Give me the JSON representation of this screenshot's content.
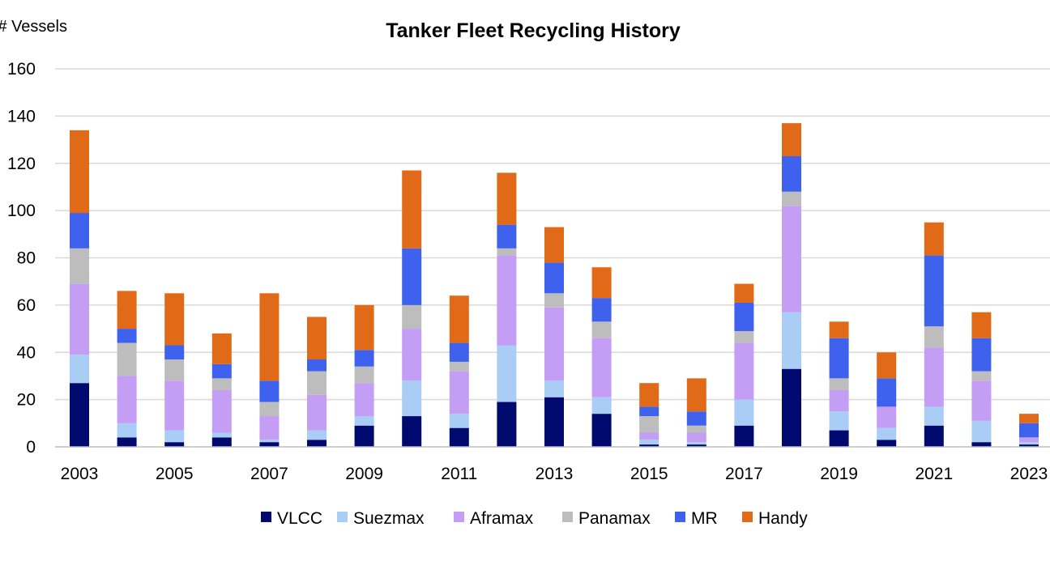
{
  "chart_data": {
    "type": "bar",
    "stacked": true,
    "title": "Tanker Fleet Recycling History",
    "ylabel": "# Vessels",
    "xlabel": "",
    "ylim": [
      0,
      160
    ],
    "yticks": [
      0,
      20,
      40,
      60,
      80,
      100,
      120,
      140,
      160
    ],
    "grid": true,
    "legend_position": "bottom",
    "categories": [
      2003,
      2004,
      2005,
      2006,
      2007,
      2008,
      2009,
      2010,
      2011,
      2012,
      2013,
      2014,
      2015,
      2016,
      2017,
      2018,
      2019,
      2020,
      2021,
      2022,
      2023
    ],
    "xtick_labels": [
      "2003",
      "2005",
      "2007",
      "2009",
      "2011",
      "2013",
      "2015",
      "2017",
      "2019",
      "2021",
      "2023"
    ],
    "series": [
      {
        "name": "VLCC",
        "color": "#000a6e",
        "values": [
          27,
          4,
          2,
          4,
          2,
          3,
          9,
          13,
          8,
          19,
          21,
          14,
          1,
          1,
          9,
          33,
          7,
          3,
          9,
          2,
          1
        ]
      },
      {
        "name": "Suezmax",
        "color": "#a9cdf4",
        "values": [
          12,
          6,
          5,
          2,
          1,
          4,
          4,
          15,
          6,
          24,
          7,
          7,
          2,
          1,
          11,
          24,
          8,
          5,
          8,
          9,
          1
        ]
      },
      {
        "name": "Aframax",
        "color": "#c49df5",
        "values": [
          30,
          20,
          21,
          18,
          10,
          15,
          14,
          22,
          18,
          38,
          31,
          25,
          3,
          4,
          24,
          45,
          9,
          9,
          25,
          17,
          2
        ]
      },
      {
        "name": "Panamax",
        "color": "#bdbdbd",
        "values": [
          15,
          14,
          9,
          5,
          6,
          10,
          7,
          10,
          4,
          3,
          6,
          7,
          7,
          3,
          5,
          6,
          5,
          0,
          9,
          4,
          0
        ]
      },
      {
        "name": "MR",
        "color": "#3f62ee",
        "values": [
          15,
          6,
          6,
          6,
          9,
          5,
          7,
          24,
          8,
          10,
          13,
          10,
          4,
          6,
          12,
          15,
          17,
          12,
          30,
          14,
          6
        ]
      },
      {
        "name": "Handy",
        "color": "#e06a17",
        "values": [
          35,
          16,
          22,
          13,
          37,
          18,
          19,
          33,
          20,
          22,
          15,
          13,
          10,
          14,
          8,
          14,
          7,
          11,
          14,
          11,
          4
        ]
      }
    ]
  }
}
